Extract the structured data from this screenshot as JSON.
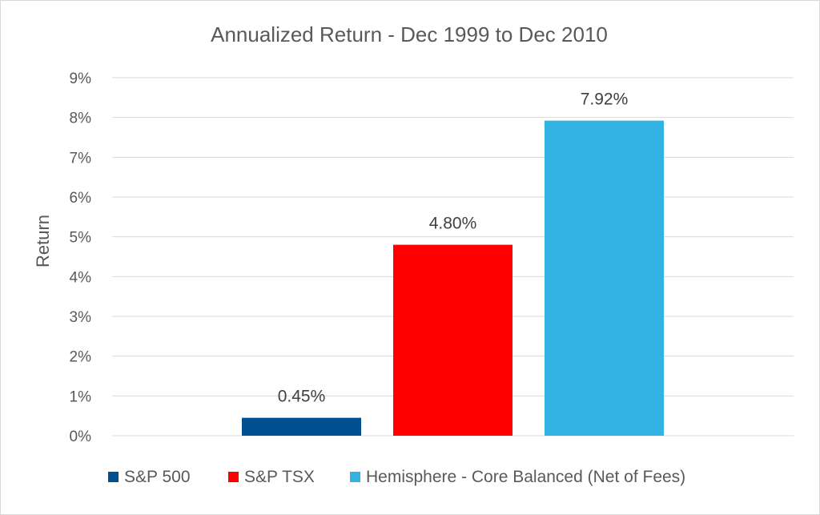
{
  "chart_data": {
    "type": "bar",
    "title": "Annualized Return - Dec 1999 to Dec 2010",
    "xlabel": "",
    "ylabel": "Return",
    "ylim": [
      0,
      9
    ],
    "y_ticks": [
      "0%",
      "1%",
      "2%",
      "3%",
      "4%",
      "5%",
      "6%",
      "7%",
      "8%",
      "9%"
    ],
    "grid": true,
    "legend_position": "bottom",
    "series": [
      {
        "name": "S&P 500",
        "value": 0.45,
        "label": "0.45%",
        "color": "#004f91"
      },
      {
        "name": "S&P TSX",
        "value": 4.8,
        "label": "4.80%",
        "color": "#ff0000"
      },
      {
        "name": "Hemisphere - Core Balanced (Net of Fees)",
        "value": 7.92,
        "label": "7.92%",
        "color": "#33b3e3"
      }
    ]
  }
}
